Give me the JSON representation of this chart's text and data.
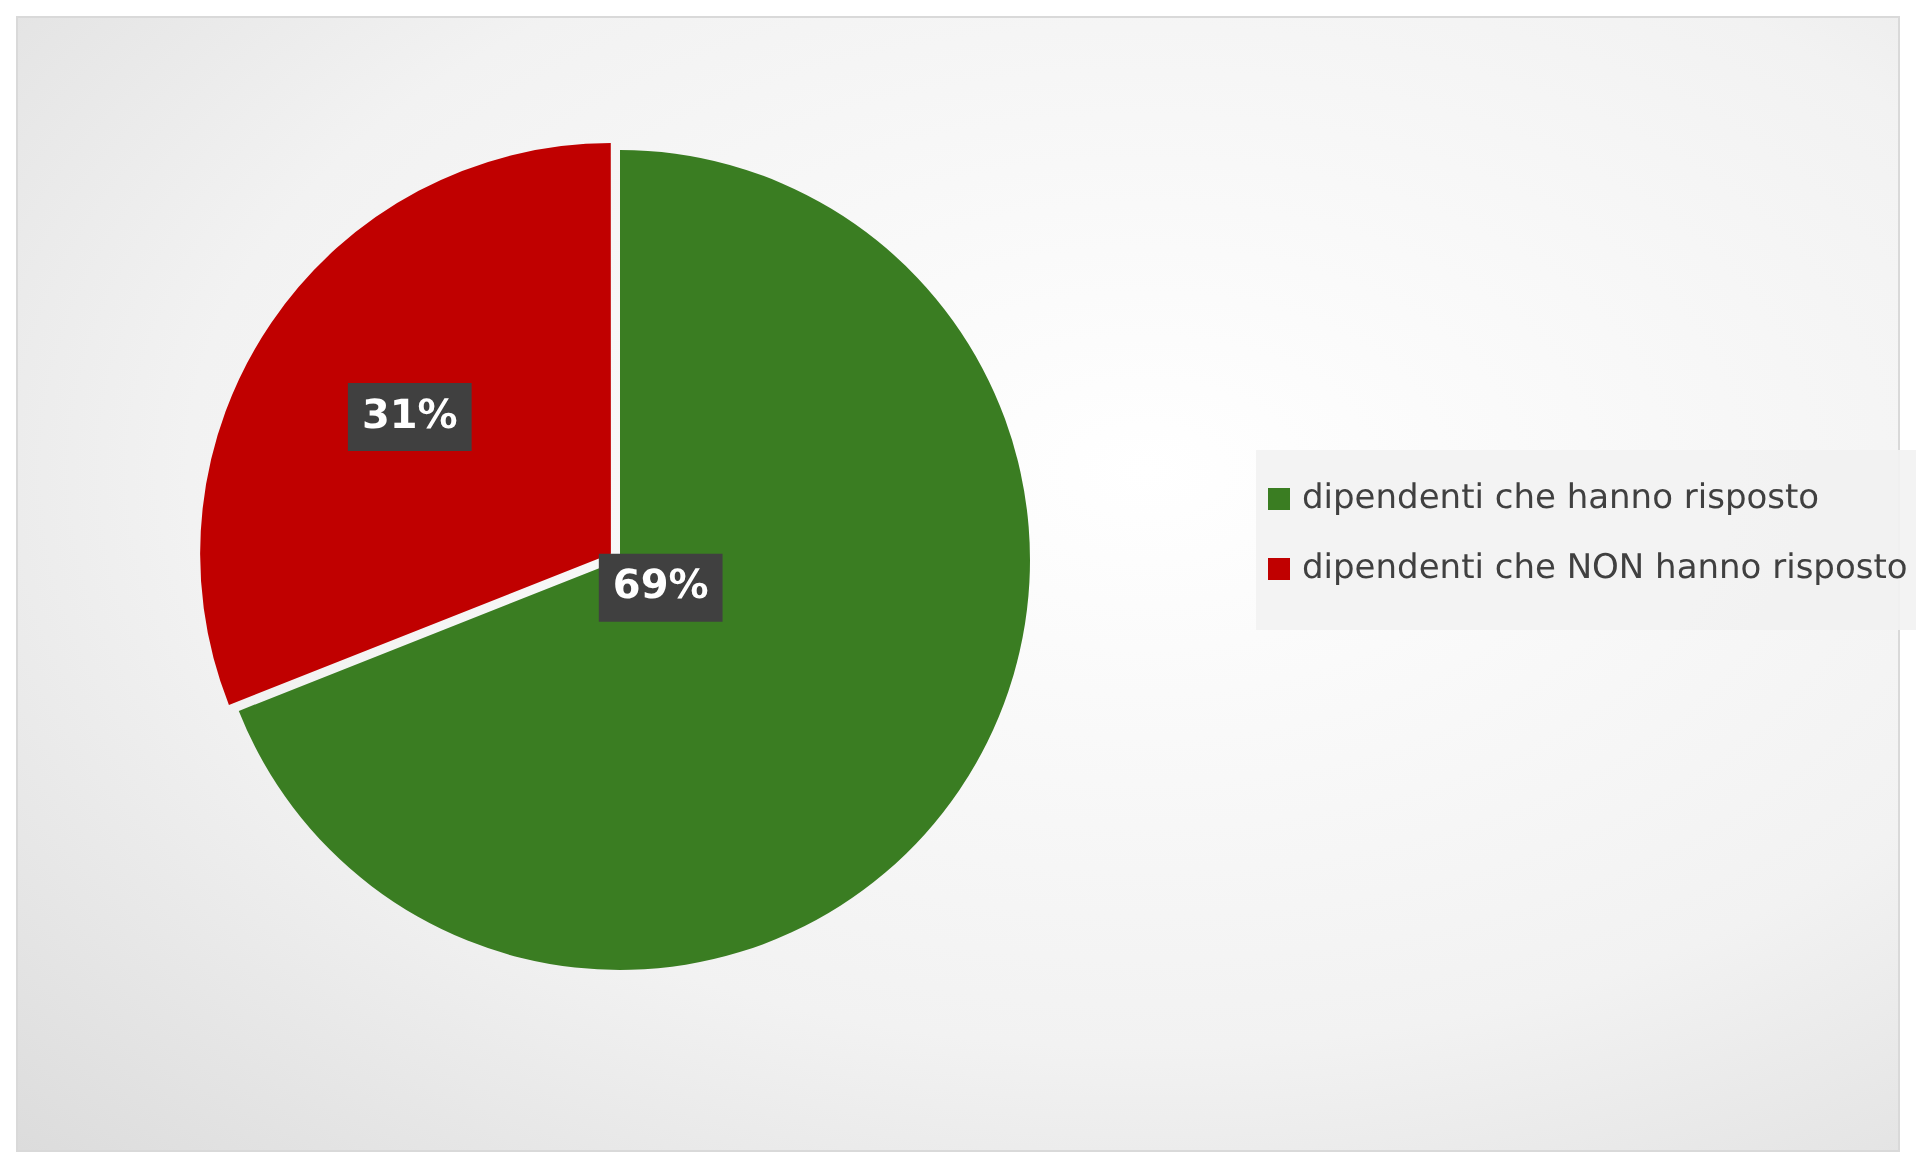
{
  "chart_data": {
    "type": "pie",
    "categories": [
      "dipendenti che hanno risposto",
      "dipendenti che NON hanno risposto"
    ],
    "values": [
      69,
      31
    ],
    "colors": [
      "#3a7d22",
      "#c00000"
    ],
    "value_labels": [
      "69%",
      "31%"
    ],
    "legend": "right"
  }
}
